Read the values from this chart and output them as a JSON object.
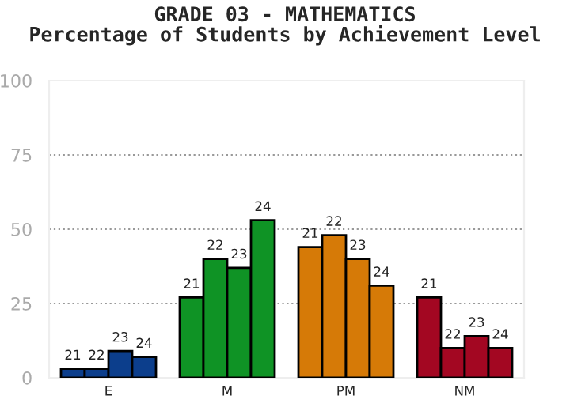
{
  "chart_data": {
    "type": "bar",
    "title": "GRADE 03 - MATHEMATICS\nPercentage of Students by Achievement Level",
    "categories": [
      "E",
      "M",
      "PM",
      "NM"
    ],
    "series": [
      {
        "name": "21",
        "colors": [
          "#0c3e8c",
          "#0f9325",
          "#d67a07",
          "#a30722"
        ],
        "values": [
          3,
          27,
          44,
          27
        ]
      },
      {
        "name": "22",
        "colors": [
          "#0c3e8c",
          "#0f9325",
          "#d67a07",
          "#a30722"
        ],
        "values": [
          3,
          40,
          48,
          10
        ]
      },
      {
        "name": "23",
        "colors": [
          "#0c3e8c",
          "#0f9325",
          "#d67a07",
          "#a30722"
        ],
        "values": [
          9,
          37,
          40,
          14
        ]
      },
      {
        "name": "24",
        "colors": [
          "#0c3e8c",
          "#0f9325",
          "#d67a07",
          "#a30722"
        ],
        "values": [
          7,
          53,
          31,
          10
        ]
      }
    ],
    "ylim": [
      0,
      100
    ],
    "yticks": [
      0,
      25,
      50,
      75,
      100
    ],
    "grid": "y",
    "legend": false
  }
}
